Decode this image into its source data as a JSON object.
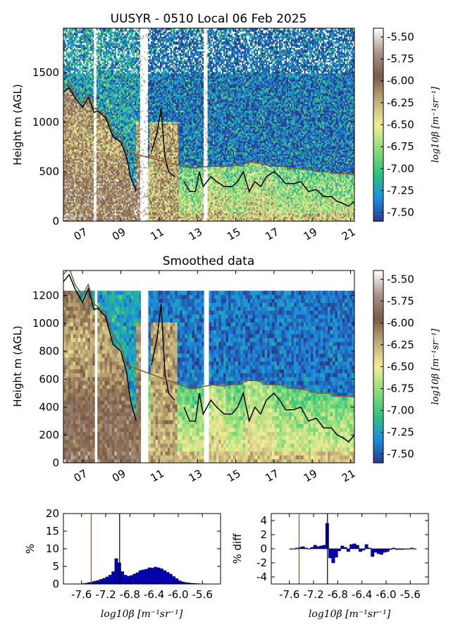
{
  "chart_data": [
    {
      "type": "heatmap",
      "title": "UUSYR - 0510 Local 06 Feb 2025",
      "ylabel": "Height m (AGL)",
      "xlabel": "",
      "x_ticks": [
        "07",
        "09",
        "11",
        "13",
        "15",
        "17",
        "19",
        "21"
      ],
      "x_tick_values": [
        7,
        9,
        11,
        13,
        15,
        17,
        19,
        21
      ],
      "xlim": [
        6.0,
        21.2
      ],
      "y_ticks": [
        "0",
        "500",
        "1000",
        "1500"
      ],
      "y_tick_values": [
        0,
        500,
        1000,
        1500
      ],
      "ylim": [
        0,
        1950
      ],
      "colorbar": {
        "label": "log10β [m⁻¹sr⁻¹]",
        "ticks": [
          "-5.50",
          "-5.75",
          "-6.00",
          "-6.25",
          "-6.50",
          "-6.75",
          "-7.00",
          "-7.25",
          "-7.50"
        ],
        "tick_values": [
          -5.5,
          -5.75,
          -6.0,
          -6.25,
          -6.5,
          -6.75,
          -7.0,
          -7.25,
          -7.5
        ],
        "range": [
          -7.6,
          -5.4
        ],
        "colormap": [
          "#2b3a8f",
          "#1a8fe0",
          "#2ec47c",
          "#8fdc7a",
          "#f1ee96",
          "#c2ad7a",
          "#7a5c45",
          "#a99489",
          "#ffffff"
        ]
      },
      "series": [
        {
          "color": "#000000",
          "x": [
            6.0,
            6.3,
            6.6,
            7.0,
            7.3,
            7.6,
            7.8,
            8.2,
            8.6,
            9.0,
            9.3,
            9.5,
            9.8,
            10.0,
            10.3,
            10.6,
            10.9,
            11.1,
            11.3,
            11.5,
            11.8,
            12.0,
            12.3,
            12.6,
            12.9,
            13.1,
            13.3,
            13.7,
            14.0,
            14.4,
            14.8,
            15.1,
            15.4,
            15.7,
            16.0,
            16.3,
            16.6,
            17.0,
            17.3,
            17.6,
            18.0,
            18.4,
            18.8,
            19.2,
            19.6,
            20.0,
            20.3,
            20.6,
            20.9,
            21.2
          ],
          "y": [
            1300,
            1350,
            1250,
            1150,
            1250,
            1100,
            1110,
            1050,
            850,
            800,
            650,
            450,
            300,
            null,
            null,
            700,
            900,
            1140,
            650,
            500,
            450,
            null,
            400,
            300,
            300,
            500,
            350,
            450,
            400,
            350,
            350,
            400,
            500,
            300,
            400,
            350,
            450,
            500,
            450,
            380,
            380,
            400,
            300,
            320,
            250,
            250,
            200,
            180,
            150,
            200
          ]
        },
        {
          "color": "#8a5a2b",
          "x": [
            6.0,
            6.3,
            6.6,
            7.0,
            7.3,
            7.6,
            7.8,
            8.2,
            8.6,
            9.0,
            9.3,
            12.3,
            12.8,
            13.4,
            13.8,
            14.3,
            14.8,
            15.3,
            15.8,
            16.3,
            16.8,
            17.3,
            17.8,
            18.3,
            18.8,
            19.3,
            19.8,
            20.3,
            20.8,
            21.2
          ],
          "y": [
            1350,
            1400,
            1280,
            1200,
            1280,
            1140,
            1120,
            1080,
            900,
            840,
            700,
            550,
            540,
            550,
            560,
            550,
            560,
            570,
            600,
            580,
            560,
            560,
            540,
            530,
            520,
            500,
            500,
            480,
            480,
            470
          ]
        }
      ]
    },
    {
      "type": "heatmap",
      "title": "Smoothed data",
      "ylabel": "Height m (AGL)",
      "xlabel": "",
      "x_ticks": [
        "07",
        "09",
        "11",
        "13",
        "15",
        "17",
        "19",
        "21"
      ],
      "x_tick_values": [
        7,
        9,
        11,
        13,
        15,
        17,
        19,
        21
      ],
      "xlim": [
        6.0,
        21.2
      ],
      "y_ticks": [
        "0",
        "200",
        "400",
        "600",
        "800",
        "1000",
        "1200"
      ],
      "y_tick_values": [
        0,
        200,
        400,
        600,
        800,
        1000,
        1200
      ],
      "ylim": [
        0,
        1380
      ],
      "colorbar": {
        "label": "log10β [m⁻¹sr⁻¹]",
        "ticks": [
          "-5.50",
          "-5.75",
          "-6.00",
          "-6.25",
          "-6.50",
          "-6.75",
          "-7.00",
          "-7.25",
          "-7.50"
        ],
        "tick_values": [
          -5.5,
          -5.75,
          -6.0,
          -6.25,
          -6.5,
          -6.75,
          -7.0,
          -7.25,
          -7.5
        ],
        "range": [
          -7.6,
          -5.4
        ]
      }
    },
    {
      "type": "bar",
      "ylabel": "%",
      "xlabel": "log10β [m⁻¹sr⁻¹]",
      "x_ticks": [
        "-7.6",
        "-7.2",
        "-6.8",
        "-6.4",
        "-6.0",
        "-5.6"
      ],
      "x_tick_values": [
        -7.6,
        -7.2,
        -6.8,
        -6.4,
        -6.0,
        -5.6
      ],
      "xlim": [
        -7.9,
        -5.3
      ],
      "y_ticks": [
        "0",
        "5",
        "10",
        "15",
        "20"
      ],
      "y_tick_values": [
        0,
        5,
        10,
        15,
        20
      ],
      "ylim": [
        0,
        20
      ],
      "bar_color": "#0000cc",
      "vlines": [
        {
          "x": -7.44,
          "color": "#a0522d"
        },
        {
          "x": -6.97,
          "color": "#000000"
        }
      ],
      "bin_width": 0.05,
      "x": [
        -7.575,
        -7.525,
        -7.475,
        -7.425,
        -7.375,
        -7.325,
        -7.275,
        -7.225,
        -7.175,
        -7.125,
        -7.075,
        -7.025,
        -6.975,
        -6.925,
        -6.875,
        -6.825,
        -6.775,
        -6.725,
        -6.675,
        -6.625,
        -6.575,
        -6.525,
        -6.475,
        -6.425,
        -6.375,
        -6.325,
        -6.275,
        -6.225,
        -6.175,
        -6.125,
        -6.075,
        -6.025,
        -5.975,
        -5.925,
        -5.875,
        -5.825,
        -5.775,
        -5.725,
        -5.675,
        -5.625,
        -5.575,
        -5.525
      ],
      "values": [
        0.1,
        0.2,
        0.4,
        0.6,
        0.8,
        1.0,
        1.3,
        1.6,
        2.0,
        2.5,
        3.5,
        7.2,
        6.0,
        3.5,
        2.5,
        2.2,
        2.4,
        2.8,
        3.2,
        3.8,
        4.0,
        4.2,
        4.6,
        4.5,
        4.8,
        4.6,
        4.3,
        3.8,
        3.3,
        2.8,
        2.1,
        1.5,
        0.9,
        0.6,
        0.4,
        0.3,
        0.2,
        0.15,
        0.1,
        0.05,
        0.05,
        0.02
      ]
    },
    {
      "type": "bar",
      "ylabel": "% diff",
      "xlabel": "log10β [m⁻¹sr⁻¹]",
      "x_ticks": [
        "-7.6",
        "-7.2",
        "-6.8",
        "-6.4",
        "-6.0",
        "-5.6"
      ],
      "x_tick_values": [
        -7.6,
        -7.2,
        -6.8,
        -6.4,
        -6.0,
        -5.6
      ],
      "xlim": [
        -7.9,
        -5.3
      ],
      "y_ticks": [
        "4",
        "2",
        "0",
        "-2",
        "-4"
      ],
      "y_tick_values": [
        4,
        2,
        0,
        -2,
        -4
      ],
      "ylim": [
        -5,
        5
      ],
      "bar_color": "#0000cc",
      "vlines": [
        {
          "x": -7.44,
          "color": "#a0522d"
        },
        {
          "x": -6.97,
          "color": "#000000"
        }
      ],
      "bin_width": 0.05,
      "x": [
        -7.575,
        -7.525,
        -7.475,
        -7.425,
        -7.375,
        -7.325,
        -7.275,
        -7.225,
        -7.175,
        -7.125,
        -7.075,
        -7.025,
        -6.975,
        -6.925,
        -6.875,
        -6.825,
        -6.775,
        -6.725,
        -6.675,
        -6.625,
        -6.575,
        -6.525,
        -6.475,
        -6.425,
        -6.375,
        -6.325,
        -6.275,
        -6.225,
        -6.175,
        -6.125,
        -6.075,
        -6.025,
        -5.975,
        -5.925,
        -5.875,
        -5.825,
        -5.775,
        -5.725,
        -5.675,
        -5.625,
        -5.575,
        -5.525
      ],
      "values": [
        0.0,
        0.0,
        0.1,
        0.2,
        0.3,
        0.1,
        0.0,
        0.2,
        0.5,
        0.3,
        0.4,
        0.5,
        3.6,
        -1.3,
        -2.0,
        -1.2,
        -0.3,
        0.4,
        0.2,
        -0.4,
        0.6,
        0.7,
        0.5,
        -0.4,
        -0.2,
        0.6,
        0.1,
        -1.1,
        -0.5,
        -0.7,
        -0.8,
        -0.5,
        -0.4,
        -0.1,
        0.1,
        -0.1,
        -0.1,
        -0.1,
        0.0,
        0.0,
        0.1,
        0.0
      ]
    }
  ]
}
